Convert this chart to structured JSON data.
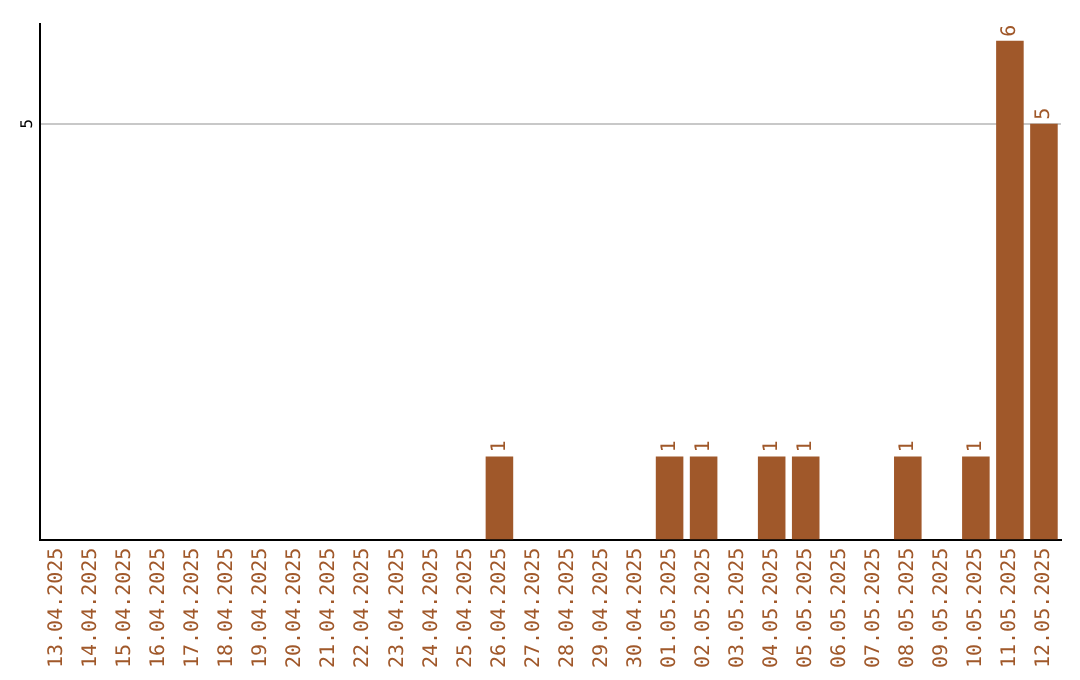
{
  "chart_data": {
    "type": "bar",
    "categories": [
      "13.04.2025",
      "14.04.2025",
      "15.04.2025",
      "16.04.2025",
      "17.04.2025",
      "18.04.2025",
      "19.04.2025",
      "20.04.2025",
      "21.04.2025",
      "22.04.2025",
      "23.04.2025",
      "24.04.2025",
      "25.04.2025",
      "26.04.2025",
      "27.04.2025",
      "28.04.2025",
      "29.04.2025",
      "30.04.2025",
      "01.05.2025",
      "02.05.2025",
      "03.05.2025",
      "04.05.2025",
      "05.05.2025",
      "06.05.2025",
      "07.05.2025",
      "08.05.2025",
      "09.05.2025",
      "10.05.2025",
      "11.05.2025",
      "12.05.2025"
    ],
    "values": [
      null,
      null,
      null,
      null,
      null,
      null,
      null,
      null,
      null,
      null,
      null,
      null,
      null,
      1,
      null,
      null,
      null,
      null,
      1,
      1,
      null,
      1,
      1,
      null,
      null,
      1,
      null,
      1,
      6,
      5
    ],
    "data_labels": true,
    "color": "#a0582a",
    "ylim": [
      0,
      6.2
    ],
    "yticks": [
      5
    ],
    "grid": "y"
  }
}
